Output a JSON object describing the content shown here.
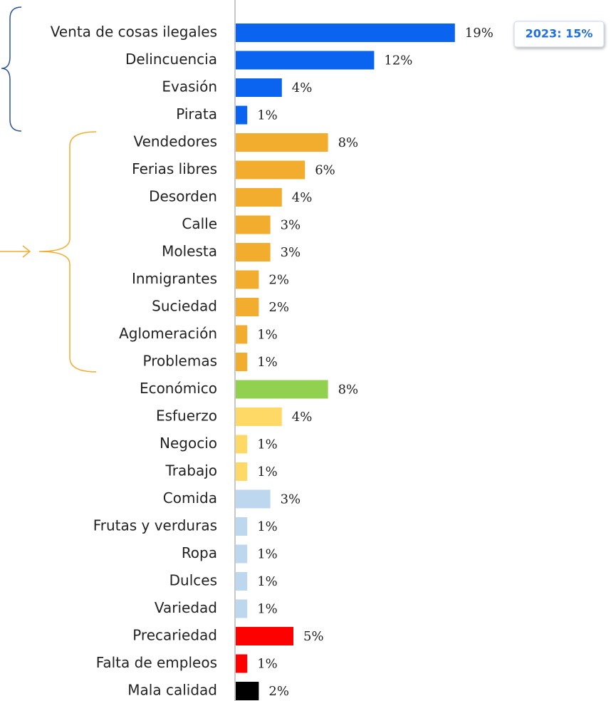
{
  "chart_data": {
    "type": "bar",
    "orientation": "horizontal",
    "categories": [
      "Venta de cosas ilegales",
      "Delincuencia",
      "Evasión",
      "Pirata",
      "Vendedores",
      "Ferias libres",
      "Desorden",
      "Calle",
      "Molesta",
      "Inmigrantes",
      "Suciedad",
      "Aglomeración",
      "Problemas",
      "Económico",
      "Esfuerzo",
      "Negocio",
      "Trabajo",
      "Comida",
      "Frutas y verduras",
      "Ropa",
      "Dulces",
      "Variedad",
      "Precariedad",
      "Falta de empleos",
      "Mala calidad"
    ],
    "values": [
      19,
      12,
      4,
      1,
      8,
      6,
      4,
      3,
      3,
      2,
      2,
      1,
      1,
      8,
      4,
      1,
      1,
      3,
      1,
      1,
      1,
      1,
      5,
      1,
      2
    ],
    "value_labels": [
      "19%",
      "12%",
      "4%",
      "1%",
      "8%",
      "6%",
      "4%",
      "3%",
      "3%",
      "2%",
      "2%",
      "1%",
      "1%",
      "8%",
      "4%",
      "1%",
      "1%",
      "3%",
      "1%",
      "1%",
      "1%",
      "1%",
      "5%",
      "1%",
      "2%"
    ],
    "colors": [
      "#0a64f0",
      "#0a64f0",
      "#0a64f0",
      "#0a64f0",
      "#f2ac2e",
      "#f2ac2e",
      "#f2ac2e",
      "#f2ac2e",
      "#f2ac2e",
      "#f2ac2e",
      "#f2ac2e",
      "#f2ac2e",
      "#f2ac2e",
      "#92d050",
      "#ffd966",
      "#ffd966",
      "#ffd966",
      "#bdd7ee",
      "#bdd7ee",
      "#bdd7ee",
      "#bdd7ee",
      "#bdd7ee",
      "#ff0000",
      "#ff0000",
      "#000000"
    ],
    "xlim": [
      0,
      20
    ],
    "annotation": "2023: 15%"
  }
}
